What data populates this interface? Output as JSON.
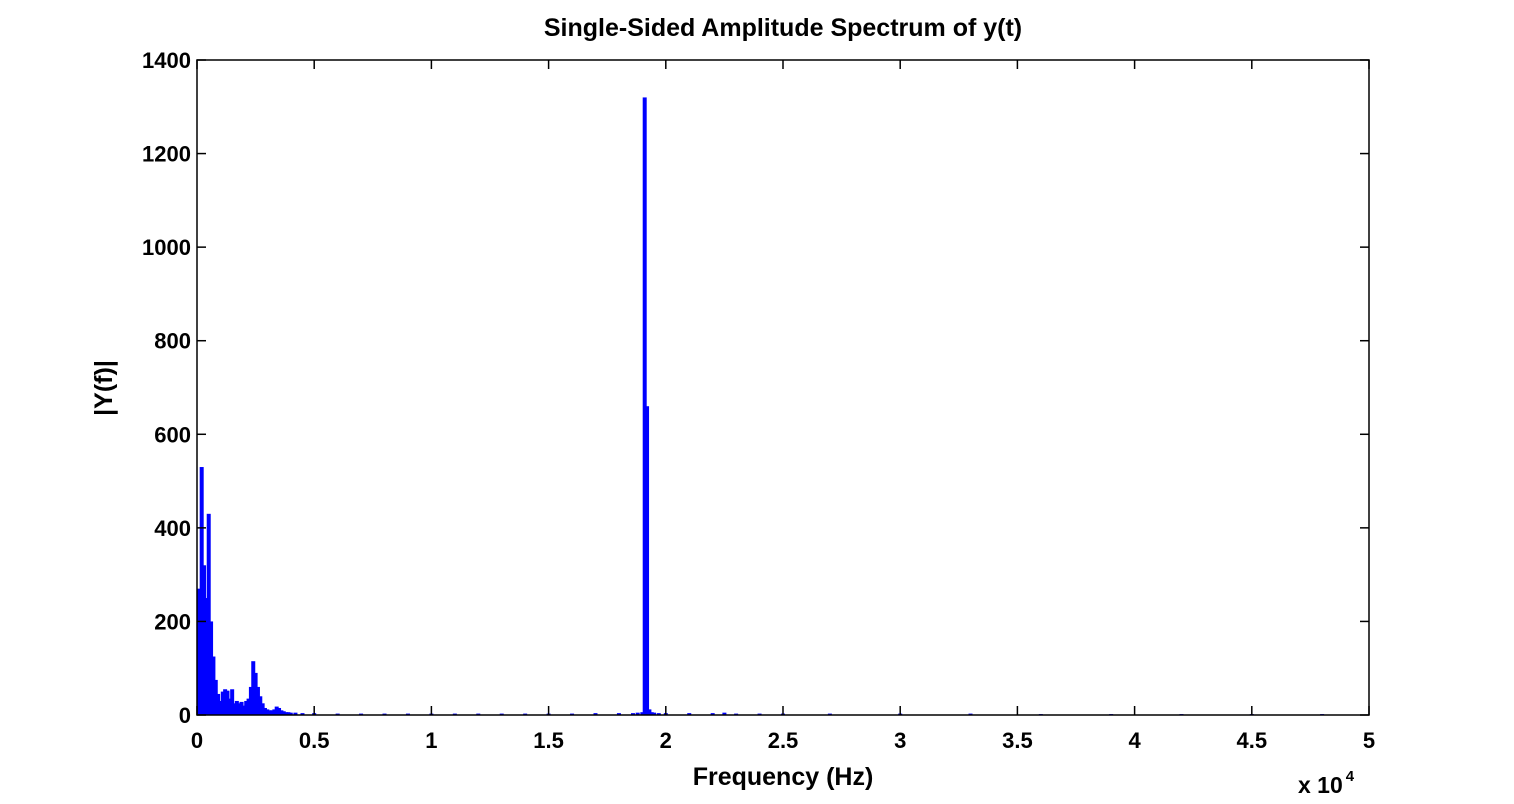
{
  "chart_data": {
    "type": "bar",
    "title": "Single-Sided Amplitude Spectrum of y(t)",
    "xlabel": "Frequency (Hz)",
    "ylabel": "|Y(f)|",
    "x_multiplier_label": "x 10",
    "x_multiplier_exponent": "4",
    "xlim": [
      0,
      50000
    ],
    "ylim": [
      0,
      1400
    ],
    "x_ticks": [
      0,
      5000,
      10000,
      15000,
      20000,
      25000,
      30000,
      35000,
      40000,
      45000,
      50000
    ],
    "x_tick_labels": [
      "0",
      "0.5",
      "1",
      "1.5",
      "2",
      "2.5",
      "3",
      "3.5",
      "4",
      "4.5",
      "5"
    ],
    "y_ticks": [
      0,
      200,
      400,
      600,
      800,
      1000,
      1200,
      1400
    ],
    "y_tick_labels": [
      "0",
      "200",
      "400",
      "600",
      "800",
      "1000",
      "1200",
      "1400"
    ],
    "grid": false,
    "bar_color": "#0000ff",
    "series": [
      {
        "x": [
          0,
          100,
          200,
          300,
          400,
          500,
          600,
          700,
          800,
          900,
          1000,
          1100,
          1200,
          1300,
          1400,
          1500,
          1600,
          1700,
          1800,
          1900,
          2000,
          2100,
          2200,
          2300,
          2400,
          2500,
          2600,
          2700,
          2800,
          2900,
          3000,
          3100,
          3200,
          3300,
          3400,
          3500,
          3600,
          3700,
          3800,
          3900,
          4000,
          4200,
          4500,
          5000,
          6000,
          7000,
          8000,
          9000,
          10000,
          11000,
          12000,
          13000,
          14000,
          15000,
          16000,
          17000,
          18000,
          18600,
          18800,
          19000,
          19100,
          19200,
          19300,
          19400,
          19500,
          19700,
          20000,
          21000,
          22000,
          22500,
          23000,
          24000,
          25000,
          27000,
          30000,
          33000,
          36000,
          39000,
          42000,
          45000,
          48000
        ],
        "values": [
          270,
          190,
          530,
          320,
          250,
          430,
          200,
          125,
          75,
          45,
          30,
          50,
          55,
          52,
          35,
          55,
          25,
          30,
          25,
          28,
          20,
          30,
          35,
          60,
          115,
          90,
          60,
          40,
          25,
          15,
          12,
          10,
          10,
          12,
          18,
          15,
          10,
          8,
          6,
          6,
          5,
          5,
          4,
          4,
          3,
          3,
          3,
          3,
          3,
          3,
          3,
          3,
          3,
          3,
          3,
          4,
          4,
          4,
          5,
          6,
          1320,
          660,
          12,
          6,
          5,
          4,
          4,
          4,
          4,
          5,
          3,
          3,
          3,
          3,
          3,
          3,
          2,
          2,
          2,
          2,
          2
        ]
      }
    ]
  }
}
